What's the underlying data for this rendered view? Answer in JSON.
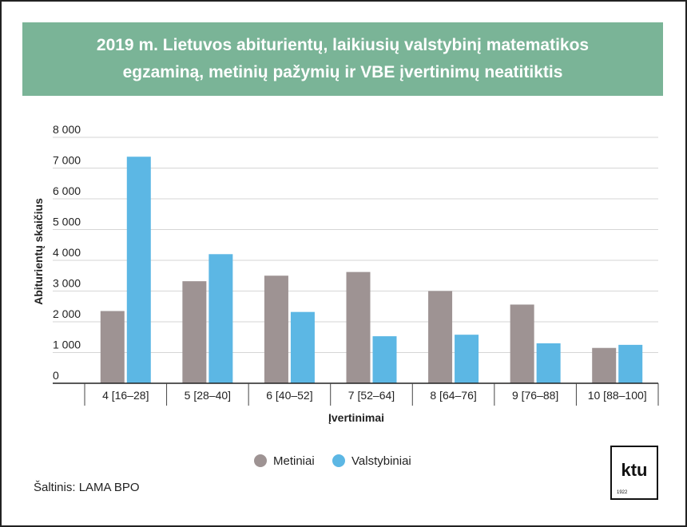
{
  "chart_data": {
    "type": "bar",
    "title": "2019 m. Lietuvos abiturientų, laikiusių valstybinį matematikos egzaminą, metinių pažymių ir VBE įvertinimų neatitiktis",
    "xlabel": "Įvertinimai",
    "ylabel": "Abiturientų skaičius",
    "ylim": [
      0,
      8000
    ],
    "yticks": [
      0,
      1000,
      2000,
      3000,
      4000,
      5000,
      6000,
      7000,
      8000
    ],
    "ytick_labels": [
      "0",
      "1 000",
      "2 000",
      "3 000",
      "4 000",
      "5 000",
      "6 000",
      "7 000",
      "8 000"
    ],
    "categories": [
      "4 [16–28]",
      "5 [28–40]",
      "6 [40–52]",
      "7 [52–64]",
      "8 [64–76]",
      "9 [76–88]",
      "10 [88–100]"
    ],
    "series": [
      {
        "name": "Metiniai",
        "color": "#9e9393",
        "values": [
          2350,
          3320,
          3500,
          3620,
          3000,
          2560,
          1150
        ]
      },
      {
        "name": "Valstybiniai",
        "color": "#5cb7e4",
        "values": [
          7370,
          4200,
          2320,
          1530,
          1580,
          1300,
          1250
        ]
      }
    ],
    "grid": true,
    "legend_position": "bottom-center"
  },
  "source": "Šaltinis: LAMA BPO",
  "logo": {
    "text": "ktu",
    "year": "1922"
  }
}
